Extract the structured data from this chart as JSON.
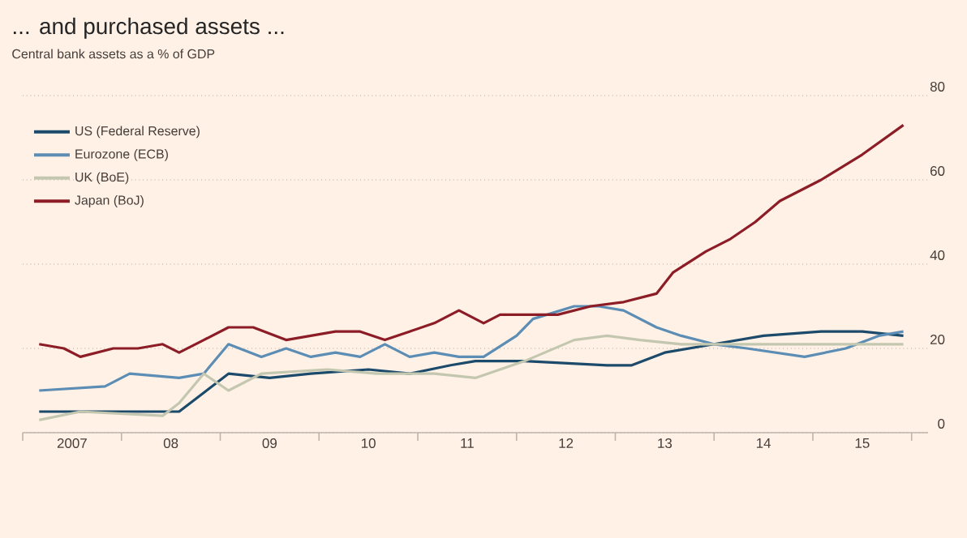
{
  "chart_data": {
    "type": "line",
    "title": "... and purchased assets ...",
    "subtitle": "Central bank assets as a % of GDP",
    "xlim": [
      "2007-01",
      "2016-03"
    ],
    "ylim": [
      0,
      80
    ],
    "yticks": [
      0,
      20,
      40,
      60,
      80
    ],
    "xticks": [
      {
        "value": "2007-01",
        "label": null
      },
      {
        "value": "2007-07",
        "label": "2007"
      },
      {
        "value": "2008-01",
        "label": null
      },
      {
        "value": "2008-07",
        "label": "08"
      },
      {
        "value": "2009-01",
        "label": null
      },
      {
        "value": "2009-07",
        "label": "09"
      },
      {
        "value": "2010-01",
        "label": null
      },
      {
        "value": "2010-07",
        "label": "10"
      },
      {
        "value": "2011-01",
        "label": null
      },
      {
        "value": "2011-07",
        "label": "11"
      },
      {
        "value": "2012-01",
        "label": null
      },
      {
        "value": "2012-07",
        "label": "12"
      },
      {
        "value": "2013-01",
        "label": null
      },
      {
        "value": "2013-07",
        "label": "13"
      },
      {
        "value": "2014-01",
        "label": null
      },
      {
        "value": "2014-07",
        "label": "14"
      },
      {
        "value": "2015-01",
        "label": null
      },
      {
        "value": "2015-07",
        "label": "15"
      },
      {
        "value": "2016-01",
        "label": null
      }
    ],
    "grid": "y",
    "legend": "top left",
    "line_style": "solid",
    "series": [
      {
        "name": "US (Federal Reserve)",
        "color": "#1b4a6b",
        "x": [
          "2007-03",
          "2007-07",
          "2008-01",
          "2008-08",
          "2009-02",
          "2009-07",
          "2009-12",
          "2010-07",
          "2010-12",
          "2011-05",
          "2011-08",
          "2012-02",
          "2012-12",
          "2013-03",
          "2013-07",
          "2014-01",
          "2014-07",
          "2015-02",
          "2015-07",
          "2015-12"
        ],
        "values": [
          5,
          5,
          5,
          5,
          14,
          13,
          14,
          15,
          14,
          16,
          17,
          17,
          16,
          16,
          19,
          21,
          23,
          24,
          24,
          23
        ]
      },
      {
        "name": "Eurozone (ECB)",
        "color": "#5b8db5",
        "x": [
          "2007-03",
          "2007-11",
          "2008-02",
          "2008-08",
          "2008-11",
          "2009-02",
          "2009-06",
          "2009-09",
          "2009-12",
          "2010-03",
          "2010-06",
          "2010-09",
          "2010-12",
          "2011-03",
          "2011-06",
          "2011-09",
          "2012-01",
          "2012-03",
          "2012-08",
          "2012-11",
          "2013-02",
          "2013-06",
          "2013-09",
          "2014-01",
          "2014-05",
          "2014-12",
          "2015-05",
          "2015-09",
          "2015-12"
        ],
        "values": [
          10,
          11,
          14,
          13,
          14,
          21,
          18,
          20,
          18,
          19,
          18,
          21,
          18,
          19,
          18,
          18,
          23,
          27,
          30,
          30,
          29,
          25,
          23,
          21,
          20,
          18,
          20,
          23,
          24
        ]
      },
      {
        "name": "UK (BoE)",
        "color": "#c4c7b0",
        "x": [
          "2007-03",
          "2007-08",
          "2008-06",
          "2008-08",
          "2008-11",
          "2009-02",
          "2009-06",
          "2010-02",
          "2010-08",
          "2011-03",
          "2011-08",
          "2012-02",
          "2012-08",
          "2012-12",
          "2013-04",
          "2013-09",
          "2014-04",
          "2014-11",
          "2015-05",
          "2015-12"
        ],
        "values": [
          3,
          5,
          4,
          7,
          14,
          10,
          14,
          15,
          14,
          14,
          13,
          17,
          22,
          23,
          22,
          21,
          21,
          21,
          21,
          21
        ]
      },
      {
        "name": "Japan (BoJ)",
        "color": "#8c1c26",
        "x": [
          "2007-03",
          "2007-06",
          "2007-08",
          "2007-12",
          "2008-03",
          "2008-06",
          "2008-08",
          "2008-11",
          "2009-02",
          "2009-05",
          "2009-09",
          "2009-12",
          "2010-03",
          "2010-06",
          "2010-09",
          "2010-12",
          "2011-03",
          "2011-06",
          "2011-09",
          "2011-11",
          "2012-03",
          "2012-06",
          "2012-10",
          "2013-02",
          "2013-06",
          "2013-08",
          "2013-12",
          "2014-03",
          "2014-06",
          "2014-09",
          "2015-02",
          "2015-07",
          "2015-12"
        ],
        "values": [
          21,
          20,
          18,
          20,
          20,
          21,
          19,
          22,
          25,
          25,
          22,
          23,
          24,
          24,
          22,
          24,
          26,
          29,
          26,
          28,
          28,
          28,
          30,
          31,
          33,
          38,
          43,
          46,
          50,
          55,
          60,
          66,
          73
        ]
      }
    ]
  }
}
